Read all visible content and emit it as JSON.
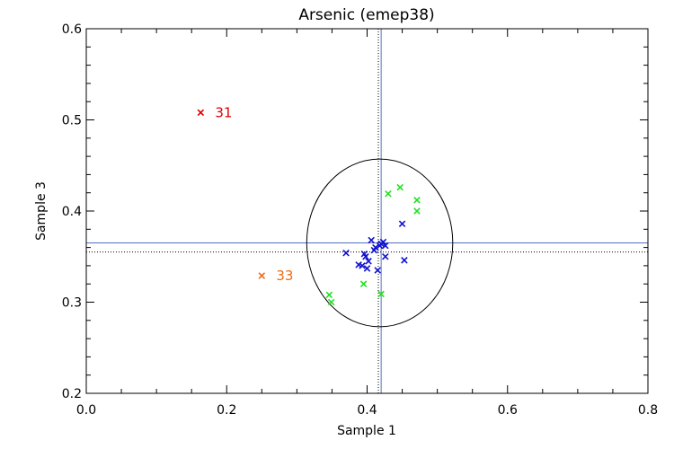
{
  "chart_data": {
    "type": "scatter",
    "title": "Arsenic (emep38)",
    "xlabel": "Sample 1",
    "ylabel": "Sample 3",
    "xlim": [
      0.0,
      0.8
    ],
    "ylim": [
      0.2,
      0.6
    ],
    "x_ticks": [
      0.0,
      0.2,
      0.4,
      0.6,
      0.8
    ],
    "x_tick_labels": [
      "0.0",
      "0.2",
      "0.4",
      "0.6",
      "0.8"
    ],
    "y_ticks": [
      0.2,
      0.3,
      0.4,
      0.5,
      0.6
    ],
    "y_tick_labels": [
      "0.2",
      "0.3",
      "0.4",
      "0.5",
      "0.6"
    ],
    "grid": false,
    "marker": "x",
    "colors": {
      "blue": "#1010d0",
      "green": "#22e022",
      "red": "#dd0000",
      "orange": "#ee6a10",
      "line": "#5070c0",
      "ellipse": "#000000"
    },
    "reference_lines": {
      "solid_vertical_x": 0.42,
      "solid_horizontal_y": 0.365,
      "dotted_vertical_x": 0.416,
      "dotted_horizontal_y": 0.355
    },
    "ellipse": {
      "cx": 0.418,
      "cy": 0.365,
      "rx": 0.104,
      "ry": 0.092
    },
    "series": [
      {
        "color": "blue",
        "points": [
          [
            0.37,
            0.354
          ],
          [
            0.388,
            0.341
          ],
          [
            0.393,
            0.34
          ],
          [
            0.396,
            0.353
          ],
          [
            0.398,
            0.35
          ],
          [
            0.4,
            0.337
          ],
          [
            0.402,
            0.345
          ],
          [
            0.406,
            0.368
          ],
          [
            0.41,
            0.357
          ],
          [
            0.412,
            0.36
          ],
          [
            0.415,
            0.335
          ],
          [
            0.418,
            0.362
          ],
          [
            0.42,
            0.364
          ],
          [
            0.423,
            0.366
          ],
          [
            0.426,
            0.362
          ],
          [
            0.426,
            0.35
          ],
          [
            0.45,
            0.386
          ],
          [
            0.453,
            0.346
          ]
        ]
      },
      {
        "color": "green",
        "points": [
          [
            0.346,
            0.308
          ],
          [
            0.349,
            0.3
          ],
          [
            0.395,
            0.32
          ],
          [
            0.42,
            0.309
          ],
          [
            0.43,
            0.419
          ],
          [
            0.447,
            0.426
          ],
          [
            0.471,
            0.412
          ],
          [
            0.471,
            0.4
          ]
        ]
      }
    ],
    "labeled_points": [
      {
        "x": 0.163,
        "y": 0.508,
        "label": "31",
        "color": "red"
      },
      {
        "x": 0.25,
        "y": 0.329,
        "label": "33",
        "color": "orange"
      }
    ]
  }
}
